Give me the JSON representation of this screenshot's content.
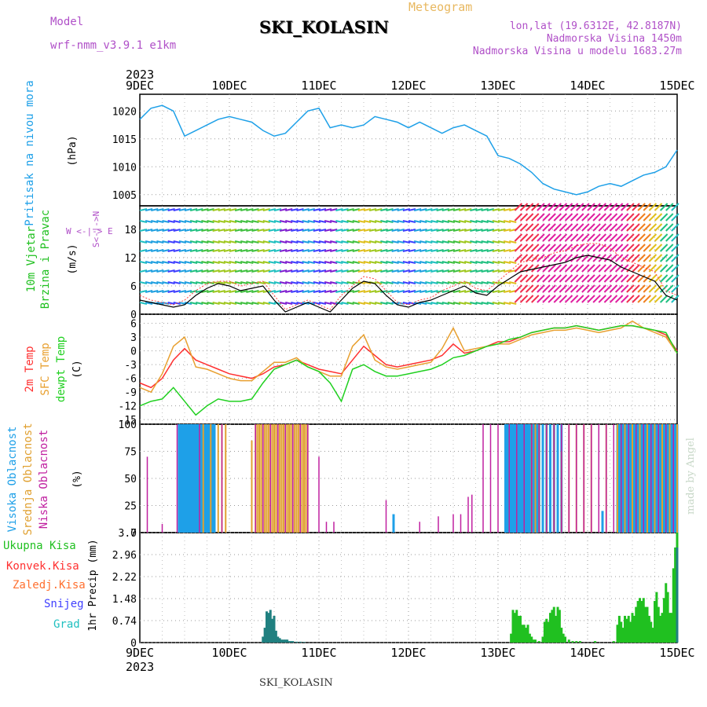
{
  "header": {
    "model_label": "Model",
    "model_value": "wrf-nmm_v3.9.1 e1km",
    "title": "SKI_KOLASIN",
    "product": "Meteogram",
    "lonlat": "lon,lat (19.6312E, 42.8187N)",
    "elevation": "Nadmorska Visina 1450m",
    "model_elevation": "Nadmorska Visina u modelu 1683.27m"
  },
  "footer": {
    "station": "SKI_KOLASIN",
    "credit": "made by Angel"
  },
  "colors": {
    "pressure": "#1ea0e8",
    "temp2m": "#ff3030",
    "tempsfc": "#e8a030",
    "dewpt": "#20d020",
    "high_cloud": "#1ea0e8",
    "mid_cloud": "#e0a030",
    "low_cloud": "#c020a0",
    "precip": "#20c020",
    "conv": "#ff3030",
    "frz": "#ff7030",
    "snow": "#4040ff",
    "grad": "#20c0c0",
    "wind_label": "#20c020",
    "dir_label": "#b050c8"
  },
  "axis": {
    "year_top": "2023",
    "year_bottom": "2023",
    "days": [
      "9DEC",
      "10DEC",
      "11DEC",
      "12DEC",
      "13DEC",
      "14DEC",
      "15DEC"
    ]
  },
  "panels": {
    "pressure": {
      "ylabel": "Pritisak na nivou mora",
      "unit": "(hPa)"
    },
    "wind": {
      "ylabel1": "10m Vjetar",
      "ylabel2": "Brzina i Pravac",
      "unit": "(m/s)",
      "dir_label": "W <-|-> E",
      "dir_label2": "S<-|->N"
    },
    "temp": {
      "label1": "2m Temp",
      "label2": "SFC Temp",
      "label3": "dewpt Temp",
      "unit": "(C)"
    },
    "cloud": {
      "label1": "Visoka Oblacnost",
      "label2": "Srednja Oblacnost",
      "label3": "Niska Oblacnost",
      "unit": "(%)"
    },
    "precip": {
      "label1": "Ukupna Kisa",
      "label2": "Konvek.Kisa",
      "label3": "Zaledj.Kisa",
      "label4": "Snijeg",
      "label5": "Grad",
      "unit": "1hr Precip (mm)"
    }
  },
  "chart_data": [
    {
      "type": "line",
      "name": "pressure",
      "ylim": [
        1003,
        1023
      ],
      "yticks": [
        1005,
        1010,
        1015,
        1020
      ],
      "x_hours": [
        0,
        3,
        6,
        9,
        12,
        15,
        18,
        21,
        24,
        27,
        30,
        33,
        36,
        39,
        42,
        45,
        48,
        51,
        54,
        57,
        60,
        63,
        66,
        69,
        72,
        75,
        78,
        81,
        84,
        87,
        90,
        93,
        96,
        99,
        102,
        105,
        108,
        111,
        114,
        117,
        120,
        123,
        126,
        129,
        132,
        135,
        138,
        141,
        144
      ],
      "values": [
        1018.5,
        1020.5,
        1021.0,
        1020.0,
        1015.5,
        1016.5,
        1017.5,
        1018.5,
        1019.0,
        1018.5,
        1018.0,
        1016.5,
        1015.5,
        1016.0,
        1018.0,
        1020.0,
        1020.5,
        1017.0,
        1017.5,
        1017.0,
        1017.5,
        1019.0,
        1018.5,
        1018.0,
        1017.0,
        1018.0,
        1017.0,
        1016.0,
        1017.0,
        1017.5,
        1016.5,
        1015.5,
        1012.0,
        1011.5,
        1010.5,
        1009.0,
        1007.0,
        1006.0,
        1005.5,
        1005.0,
        1005.5,
        1006.5,
        1007.0,
        1006.5,
        1007.5,
        1008.5,
        1009.0,
        1010.0,
        1013.0
      ]
    },
    {
      "type": "line",
      "name": "wind",
      "ylim": [
        0,
        23
      ],
      "yticks": [
        0,
        6,
        12,
        18
      ],
      "x_hours": [
        0,
        3,
        6,
        9,
        12,
        15,
        18,
        21,
        24,
        27,
        30,
        33,
        36,
        39,
        42,
        45,
        48,
        51,
        54,
        57,
        60,
        63,
        66,
        69,
        72,
        75,
        78,
        81,
        84,
        87,
        90,
        93,
        96,
        99,
        102,
        105,
        108,
        111,
        114,
        117,
        120,
        123,
        126,
        129,
        132,
        135,
        138,
        141,
        144
      ],
      "speed": [
        3,
        2.5,
        2,
        1.5,
        2,
        4,
        5.5,
        6.5,
        6,
        5,
        5.5,
        6,
        3,
        0.5,
        1.5,
        2.5,
        1.5,
        0.5,
        3,
        5.5,
        7,
        6.5,
        4,
        2,
        1.5,
        2.5,
        3,
        4,
        5,
        6,
        4.5,
        4,
        6,
        7.5,
        9,
        9.5,
        10,
        10.5,
        11,
        12,
        12.5,
        12,
        11.5,
        10,
        9,
        8,
        7,
        4,
        3
      ],
      "gust": [
        4,
        3,
        2.5,
        2,
        3,
        5,
        6.5,
        7,
        7,
        6,
        6.5,
        7,
        4,
        1,
        2,
        3,
        2,
        1,
        4,
        6,
        8,
        7.5,
        5,
        2.5,
        2,
        3,
        3.5,
        5,
        6,
        7,
        5.5,
        5,
        7,
        9,
        11,
        11.5,
        12,
        13,
        13.5,
        14.5,
        15,
        15,
        14,
        12,
        11,
        10,
        9,
        5,
        4
      ]
    },
    {
      "type": "line",
      "name": "temperature",
      "ylim": [
        -16,
        8
      ],
      "yticks": [
        -15,
        -12,
        -9,
        -6,
        -3,
        0,
        3,
        6
      ],
      "x_hours": [
        0,
        3,
        6,
        9,
        12,
        15,
        18,
        21,
        24,
        27,
        30,
        33,
        36,
        39,
        42,
        45,
        48,
        51,
        54,
        57,
        60,
        63,
        66,
        69,
        72,
        75,
        78,
        81,
        84,
        87,
        90,
        93,
        96,
        99,
        102,
        105,
        108,
        111,
        114,
        117,
        120,
        123,
        126,
        129,
        132,
        135,
        138,
        141,
        144
      ],
      "series": [
        {
          "name": "2m Temp",
          "values": [
            -7,
            -8,
            -6,
            -2,
            0.5,
            -2,
            -3,
            -4,
            -5,
            -5.5,
            -6,
            -5,
            -3.5,
            -3,
            -2,
            -3,
            -4,
            -4.5,
            -5,
            -2,
            1,
            -1,
            -3,
            -3.5,
            -3,
            -2.5,
            -2,
            -1,
            1.5,
            -0.5,
            0,
            1,
            2,
            2,
            3,
            4,
            4.5,
            5,
            5,
            5.5,
            5,
            4.5,
            5,
            5.5,
            5.5,
            5,
            4.5,
            3.5,
            0
          ]
        },
        {
          "name": "SFC Temp",
          "values": [
            -8,
            -9,
            -5,
            1,
            3,
            -3.5,
            -4,
            -5,
            -6,
            -6.5,
            -6.5,
            -4.5,
            -2.5,
            -2.5,
            -1.5,
            -3.5,
            -4.5,
            -5.5,
            -5.5,
            1,
            3.5,
            -2,
            -3.5,
            -4,
            -3.5,
            -3,
            -2.5,
            0.5,
            5,
            0,
            0.5,
            1,
            1.5,
            1.5,
            2.5,
            3.5,
            4,
            4.5,
            4.5,
            5,
            4.5,
            4,
            4.5,
            5,
            6.5,
            5,
            4,
            3,
            -0.5
          ]
        },
        {
          "name": "dewpt Temp",
          "values": [
            -12,
            -11,
            -10.5,
            -8,
            -11,
            -14,
            -12,
            -10.5,
            -11,
            -11,
            -10.5,
            -7,
            -4,
            -3,
            -2,
            -3.5,
            -4.5,
            -7,
            -11,
            -4,
            -3,
            -4.5,
            -5.5,
            -5.5,
            -5,
            -4.5,
            -4,
            -3,
            -1.5,
            -1,
            0,
            1,
            1.5,
            2.5,
            3,
            4,
            4.5,
            5,
            5,
            5.5,
            5,
            4.5,
            5,
            5.5,
            5.5,
            5,
            4.5,
            4,
            -0.5
          ]
        }
      ]
    },
    {
      "type": "bar",
      "name": "cloud",
      "ylim": [
        0,
        100
      ],
      "yticks": [
        0,
        25,
        50,
        75,
        100
      ],
      "series": [
        {
          "name": "Visoka Oblacnost",
          "x_hours": [
            10.5,
            11,
            11.5,
            12,
            12.5,
            13,
            13.5,
            14,
            14.5,
            15,
            15.5,
            16,
            16.5,
            17,
            17.5,
            18,
            18.5,
            19,
            19.5,
            20,
            68,
            98,
            98.5,
            99,
            99.5,
            100,
            100.5,
            101,
            101.5,
            102,
            102.5,
            103,
            103.5,
            104,
            104.5,
            105,
            105.5,
            106,
            106.5,
            107,
            108,
            109,
            110,
            111,
            112,
            113,
            124,
            128,
            128.5,
            129,
            129.5,
            130,
            130.5,
            131,
            131.5,
            132,
            132.5,
            133,
            133.5,
            134,
            134.5,
            135,
            135.5,
            136,
            136.5,
            137,
            137.5,
            138,
            138.5,
            139,
            139.5,
            140,
            140.5,
            141,
            141.5,
            142,
            142.5,
            143,
            143.5,
            144
          ],
          "values": [
            100,
            100,
            100,
            100,
            100,
            100,
            100,
            100,
            100,
            100,
            100,
            100,
            100,
            100,
            100,
            100,
            100,
            100,
            100,
            100,
            17,
            100,
            100,
            100,
            100,
            100,
            100,
            100,
            100,
            100,
            100,
            100,
            100,
            100,
            100,
            100,
            100,
            100,
            100,
            100,
            100,
            100,
            100,
            100,
            100,
            100,
            20,
            100,
            100,
            100,
            100,
            100,
            100,
            100,
            100,
            100,
            100,
            100,
            100,
            100,
            100,
            100,
            100,
            100,
            100,
            100,
            100,
            100,
            100,
            100,
            100,
            100,
            100,
            100,
            100,
            100,
            100,
            100,
            100,
            100
          ]
        },
        {
          "name": "Srednja Oblacnost",
          "x_hours": [
            17,
            19,
            21,
            22,
            23,
            30,
            31,
            31.5,
            32,
            32.5,
            33,
            33.5,
            34,
            34.5,
            35,
            35.5,
            36,
            36.5,
            37,
            37.5,
            38,
            38.5,
            39,
            39.5,
            40,
            40.5,
            41,
            41.5,
            42,
            42.5,
            43,
            43.5,
            44,
            44.5,
            45,
            105,
            106,
            107,
            109,
            111,
            113,
            115,
            117,
            119,
            121,
            125,
            128,
            130,
            132,
            134,
            136,
            138,
            140,
            142,
            144
          ],
          "values": [
            100,
            100,
            100,
            100,
            100,
            85,
            100,
            100,
            100,
            100,
            100,
            100,
            100,
            100,
            100,
            100,
            100,
            100,
            100,
            100,
            100,
            100,
            100,
            100,
            100,
            100,
            100,
            100,
            100,
            100,
            100,
            100,
            100,
            100,
            100,
            100,
            100,
            100,
            100,
            100,
            75,
            100,
            100,
            100,
            100,
            100,
            100,
            100,
            100,
            100,
            100,
            100,
            100,
            100,
            100
          ]
        },
        {
          "name": "Niska Oblacnost",
          "x_hours": [
            2,
            6,
            10,
            16,
            22,
            31,
            33,
            35,
            37,
            39,
            41,
            43,
            45,
            48,
            50,
            52,
            66,
            75,
            80,
            84,
            86,
            88,
            89,
            92,
            94,
            96,
            99,
            101,
            103,
            105,
            107,
            109,
            111,
            113,
            115,
            117,
            119,
            121,
            123,
            125,
            127,
            129,
            131,
            133,
            135,
            137,
            139,
            141,
            143
          ],
          "values": [
            70,
            8,
            100,
            100,
            100,
            100,
            100,
            100,
            100,
            100,
            100,
            100,
            100,
            70,
            10,
            10,
            30,
            10,
            15,
            17,
            17,
            33,
            35,
            100,
            100,
            100,
            100,
            100,
            100,
            100,
            100,
            100,
            100,
            100,
            100,
            100,
            100,
            100,
            100,
            100,
            100,
            100,
            100,
            100,
            100,
            100,
            100,
            100,
            100
          ]
        }
      ]
    },
    {
      "type": "bar",
      "name": "precip",
      "ylim": [
        0,
        3.7
      ],
      "yticks": [
        0,
        0.74,
        1.48,
        2.22,
        2.96,
        3.7
      ],
      "series": [
        {
          "name": "Ukupna Kisa",
          "x_hours": [
            99.5,
            100,
            100.5,
            101,
            101.5,
            102,
            102.5,
            103,
            103.5,
            104,
            104.5,
            105,
            105.5,
            106,
            107,
            108,
            108.5,
            109,
            109.5,
            110,
            110.5,
            111,
            111.5,
            112,
            112.5,
            113,
            113.5,
            114,
            115,
            116,
            117,
            118,
            122,
            127,
            128,
            128.5,
            129,
            129.5,
            130,
            130.5,
            131,
            131.5,
            132,
            132.5,
            133,
            133.5,
            134,
            134.5,
            135,
            135.5,
            136,
            136.5,
            137,
            137.5,
            138,
            138.5,
            139,
            139.5,
            140,
            140.5,
            141,
            141.5,
            142,
            142.5,
            143,
            143.5,
            144
          ],
          "values": [
            0.3,
            1.1,
            1.0,
            1.1,
            0.9,
            0.9,
            0.6,
            0.6,
            0.5,
            0.6,
            0.3,
            0.2,
            0.1,
            0.1,
            0.05,
            0.2,
            0.7,
            0.8,
            0.7,
            1.0,
            1.1,
            1.2,
            0.9,
            1.2,
            1.1,
            0.5,
            0.3,
            0.2,
            0.1,
            0.05,
            0.05,
            0.05,
            0.05,
            0.05,
            0.6,
            0.9,
            0.7,
            0.5,
            0.9,
            0.8,
            0.9,
            0.7,
            1.0,
            0.9,
            1.2,
            1.4,
            1.5,
            1.4,
            1.5,
            1.2,
            1.2,
            0.9,
            0.7,
            0.5,
            1.4,
            1.7,
            1.2,
            0.9,
            1.0,
            1.5,
            2.0,
            1.7,
            1.0,
            1.0,
            2.5,
            3.2,
            3.7
          ]
        },
        {
          "name": "Snijeg",
          "x_hours": [
            33,
            33.5,
            34,
            34.5,
            35,
            35.5,
            36,
            36.5,
            37,
            37.5,
            38,
            38.5,
            39,
            39.5,
            40,
            40.5,
            41,
            42,
            43,
            44,
            144
          ],
          "values": [
            0.2,
            0.5,
            1.05,
            1.0,
            1.1,
            0.8,
            0.9,
            0.4,
            0.2,
            0.15,
            0.1,
            0.1,
            0.1,
            0.1,
            0.05,
            0.05,
            0.05,
            0.03,
            0.03,
            0.02,
            3.2
          ]
        }
      ]
    }
  ]
}
